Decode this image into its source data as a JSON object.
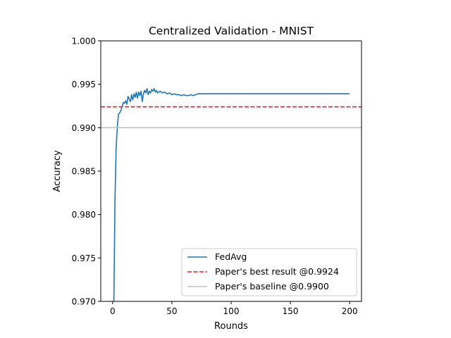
{
  "chart_data": {
    "type": "line",
    "title": "Centralized Validation - MNIST",
    "xlabel": "Rounds",
    "ylabel": "Accuracy",
    "xlim": [
      -10,
      210
    ],
    "ylim": [
      0.97,
      1.0
    ],
    "x_ticks": [
      0,
      50,
      100,
      150,
      200
    ],
    "x_tick_labels": [
      "0",
      "50",
      "100",
      "150",
      "200"
    ],
    "y_ticks": [
      0.97,
      0.975,
      0.98,
      0.985,
      0.99,
      0.995,
      1.0
    ],
    "y_tick_labels": [
      "0.970",
      "0.975",
      "0.980",
      "0.985",
      "0.990",
      "0.995",
      "1.000"
    ],
    "grid": false,
    "legend_position": "lower right",
    "series": [
      {
        "name": "FedAvg",
        "style": "line",
        "color": "#1f77b4",
        "x": [
          1,
          2,
          3,
          4,
          5,
          6,
          7,
          8,
          9,
          10,
          11,
          12,
          13,
          14,
          15,
          16,
          17,
          18,
          19,
          20,
          21,
          22,
          23,
          24,
          25,
          26,
          27,
          28,
          29,
          30,
          31,
          32,
          33,
          34,
          35,
          36,
          37,
          38,
          39,
          40,
          42,
          44,
          46,
          48,
          50,
          52,
          54,
          56,
          58,
          60,
          62,
          64,
          66,
          68,
          70,
          72,
          80,
          100,
          120,
          140,
          160,
          180,
          200
        ],
        "y": [
          0.9695,
          0.9818,
          0.9878,
          0.9902,
          0.9916,
          0.9917,
          0.992,
          0.9924,
          0.9929,
          0.9928,
          0.9931,
          0.9927,
          0.9936,
          0.9933,
          0.993,
          0.9938,
          0.9932,
          0.9939,
          0.9935,
          0.9941,
          0.9934,
          0.9941,
          0.9937,
          0.9942,
          0.993,
          0.9939,
          0.9943,
          0.994,
          0.9945,
          0.9938,
          0.9942,
          0.994,
          0.9944,
          0.9942,
          0.9945,
          0.9941,
          0.9943,
          0.994,
          0.9941,
          0.9942,
          0.994,
          0.9941,
          0.9939,
          0.994,
          0.9938,
          0.9939,
          0.9938,
          0.9938,
          0.9937,
          0.9938,
          0.9937,
          0.9937,
          0.9938,
          0.9937,
          0.9938,
          0.9939,
          0.9939,
          0.9939,
          0.9939,
          0.9939,
          0.9939,
          0.9939,
          0.9939
        ]
      },
      {
        "name": "Paper's best result @0.9924",
        "style": "hline-dashed",
        "color": "#d62728",
        "y": 0.9924
      },
      {
        "name": "Paper's baseline @0.9900",
        "style": "hline",
        "color": "#c0c0c0",
        "y": 0.99
      }
    ]
  }
}
